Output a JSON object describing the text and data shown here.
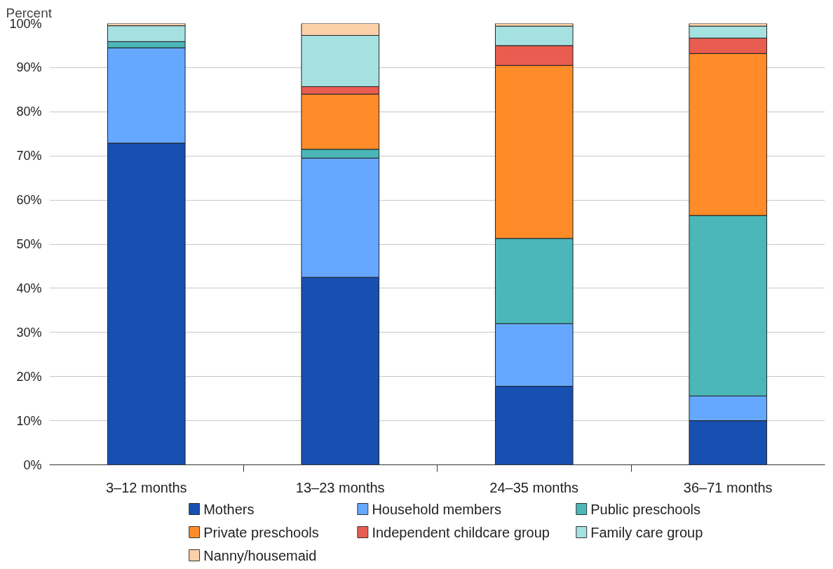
{
  "chart_data": {
    "type": "bar",
    "stacked": true,
    "ylabel": "Percent",
    "categories": [
      "3–12 months",
      "13–23 months",
      "24–35 months",
      "36–71 months"
    ],
    "series": [
      {
        "name": "Mothers",
        "color": "#1750b0",
        "values": [
          72.9,
          42.5,
          17.8,
          10.0
        ]
      },
      {
        "name": "Household members",
        "color": "#66a8ff",
        "values": [
          21.6,
          27.0,
          14.2,
          5.6
        ]
      },
      {
        "name": "Public preschools",
        "color": "#4bb7b9",
        "values": [
          1.4,
          2.0,
          19.3,
          40.9
        ]
      },
      {
        "name": "Private preschools",
        "color": "#ff8c28",
        "values": [
          null,
          12.5,
          39.2,
          36.7
        ]
      },
      {
        "name": "Independent childcare group",
        "color": "#e85d50",
        "values": [
          null,
          1.7,
          4.5,
          3.5
        ]
      },
      {
        "name": "Family care group",
        "color": "#a6e1e2",
        "values": [
          3.6,
          11.6,
          4.4,
          2.7
        ]
      },
      {
        "name": "Nanny/housemaid",
        "color": "#fcd0a8",
        "values": [
          0.5,
          2.7,
          0.6,
          0.6
        ]
      }
    ],
    "ylim": [
      0,
      100
    ],
    "yticks": [
      {
        "value": 0,
        "label": "0%"
      },
      {
        "value": 10,
        "label": "10%"
      },
      {
        "value": 20,
        "label": "20%"
      },
      {
        "value": 30,
        "label": "30%"
      },
      {
        "value": 40,
        "label": "40%"
      },
      {
        "value": 50,
        "label": "50%"
      },
      {
        "value": 60,
        "label": "60%"
      },
      {
        "value": 70,
        "label": "70%"
      },
      {
        "value": 80,
        "label": "80%"
      },
      {
        "value": 90,
        "label": "90%"
      },
      {
        "value": 100,
        "label": "100%"
      }
    ],
    "grid": "y",
    "legend": "bottom"
  }
}
